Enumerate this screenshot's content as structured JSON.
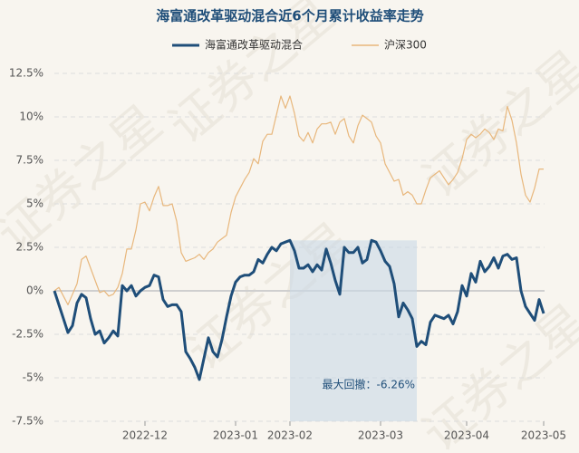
{
  "chart_data": {
    "type": "line",
    "title": "海富通改革驱动混合近6个月累计收益率走势",
    "watermark": "证券之星",
    "categories": [
      null,
      null,
      null,
      null,
      null,
      null,
      null,
      null,
      null,
      null,
      null,
      null,
      null,
      null,
      null,
      null,
      null,
      null,
      null,
      null,
      "2022-12",
      null,
      null,
      null,
      null,
      null,
      null,
      null,
      null,
      null,
      null,
      null,
      null,
      null,
      null,
      null,
      null,
      null,
      null,
      null,
      "2023-01",
      null,
      null,
      null,
      null,
      null,
      null,
      null,
      null,
      null,
      null,
      null,
      "2023-02",
      null,
      null,
      null,
      null,
      null,
      null,
      null,
      null,
      null,
      null,
      null,
      null,
      null,
      null,
      null,
      null,
      null,
      null,
      null,
      "2023-03",
      null,
      null,
      null,
      null,
      null,
      null,
      null,
      null,
      null,
      null,
      null,
      null,
      null,
      null,
      null,
      null,
      null,
      null,
      "2023-04",
      null,
      null,
      null,
      null,
      null,
      null,
      null,
      null,
      null,
      null,
      null,
      null,
      null,
      null,
      null,
      null,
      "2023-05"
    ],
    "series": [
      {
        "name": "海富通改革驱动混合",
        "color": "#1f4e79",
        "values": [
          0,
          -0.8,
          -1.6,
          -2.4,
          -2.0,
          -0.7,
          -0.2,
          -0.4,
          -1.6,
          -2.5,
          -2.3,
          -3.0,
          -2.7,
          -2.3,
          -2.6,
          0.3,
          0,
          0.3,
          -0.3,
          0,
          0.2,
          0.3,
          0.9,
          0.8,
          -0.5,
          -0.9,
          -0.8,
          -0.8,
          -1.2,
          -3.5,
          -3.9,
          -4.4,
          -5.1,
          -3.9,
          -2.7,
          -3.5,
          -3.8,
          -2.8,
          -1.5,
          -0.3,
          0.5,
          0.8,
          0.9,
          0.9,
          1.1,
          1.8,
          1.6,
          2.1,
          2.5,
          2.3,
          2.7,
          2.8,
          2.9,
          2.3,
          1.3,
          1.3,
          1.5,
          1.1,
          1.5,
          1.2,
          2.4,
          1.6,
          0.6,
          -0.2,
          2.5,
          2.2,
          2.2,
          2.5,
          1.6,
          1.8,
          2.9,
          2.8,
          2.3,
          1.7,
          1.4,
          0.4,
          -1.5,
          -0.7,
          -1.1,
          -1.6,
          -3.2,
          -2.9,
          -3.1,
          -1.8,
          -1.4,
          -1.5,
          -1.6,
          -1.4,
          -1.9,
          -1.2,
          0.3,
          -0.3,
          1.0,
          0.5,
          1.7,
          1.1,
          1.4,
          1.9,
          1.3,
          2.0,
          2.1,
          1.8,
          1.9,
          0,
          -0.9,
          -1.3,
          -1.7,
          -0.5,
          -1.3
        ]
      },
      {
        "name": "沪深300",
        "color": "#e8b77c",
        "values": [
          0,
          0.2,
          -0.3,
          -0.8,
          -0.2,
          0.4,
          1.8,
          2.0,
          1.3,
          0.6,
          -0.1,
          0,
          -0.3,
          -0.2,
          0.2,
          1.0,
          2.4,
          2.4,
          3.5,
          5.0,
          5.1,
          4.6,
          5.4,
          6.0,
          4.9,
          4.9,
          5.0,
          4.0,
          2.2,
          1.7,
          1.8,
          1.9,
          2.1,
          1.8,
          2.2,
          2.4,
          2.8,
          3.0,
          3.2,
          4.5,
          5.4,
          5.9,
          6.4,
          6.8,
          7.6,
          7.3,
          8.6,
          9.0,
          9.0,
          10.1,
          11.2,
          10.5,
          11.2,
          10.2,
          8.9,
          8.6,
          9.1,
          8.5,
          9.3,
          9.6,
          9.6,
          9.7,
          9.0,
          9.7,
          9.9,
          8.9,
          8.5,
          9.5,
          10.1,
          9.9,
          9.7,
          8.9,
          8.5,
          7.3,
          6.8,
          6.3,
          6.4,
          5.5,
          5.7,
          5.5,
          5.0,
          5.0,
          5.8,
          6.5,
          6.7,
          6.9,
          6.5,
          6.1,
          6.4,
          6.8,
          7.6,
          8.7,
          9.0,
          8.8,
          9.0,
          9.3,
          9.1,
          8.7,
          9.3,
          9.2,
          10.6,
          9.8,
          8.5,
          6.7,
          5.5,
          5.1,
          5.9,
          7.0,
          7.0
        ]
      }
    ],
    "ylim": [
      -7.5,
      12.5
    ],
    "yticks": [
      {
        "value": -7.5,
        "label": "-7.5%"
      },
      {
        "value": -5,
        "label": "-5%"
      },
      {
        "value": -2.5,
        "label": "-2.5%"
      },
      {
        "value": 0,
        "label": "0%"
      },
      {
        "value": 2.5,
        "label": "2.5%"
      },
      {
        "value": 5,
        "label": "5%"
      },
      {
        "value": 7.5,
        "label": "7.5%"
      },
      {
        "value": 10,
        "label": "10%"
      },
      {
        "value": 12.5,
        "label": "12.5%"
      }
    ],
    "grid": true,
    "drawdown_label": "最大回撤：-6.26%"
  }
}
